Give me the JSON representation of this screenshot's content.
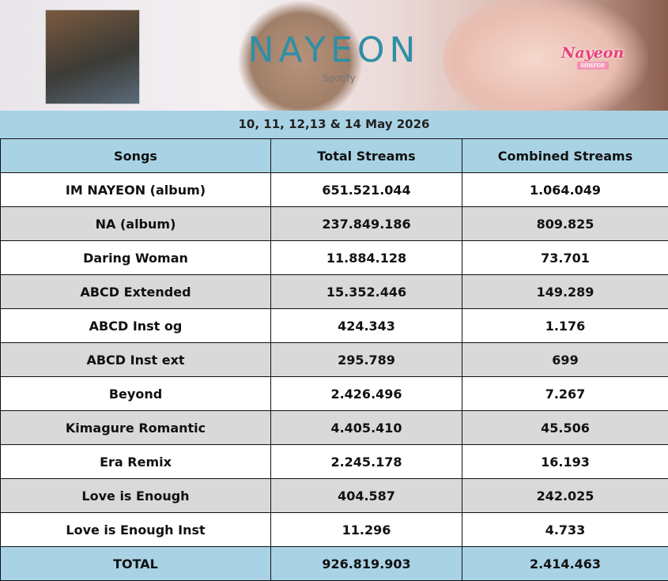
{
  "header": {
    "title": "NAYEON",
    "brand": "Spotify",
    "logo": {
      "name": "Nayeon",
      "tag": "source"
    }
  },
  "date_range": "10, 11, 12,13 & 14 May 2026",
  "table": {
    "columns": [
      "Songs",
      "Total Streams",
      "Combined Streams"
    ],
    "rows": [
      [
        "IM NAYEON (album)",
        "651.521.044",
        "1.064.049"
      ],
      [
        "NA (album)",
        "237.849.186",
        "809.825"
      ],
      [
        "Daring Woman",
        "11.884.128",
        "73.701"
      ],
      [
        "ABCD Extended",
        "15.352.446",
        "149.289"
      ],
      [
        "ABCD Inst og",
        "424.343",
        "1.176"
      ],
      [
        "ABCD Inst ext",
        "295.789",
        "699"
      ],
      [
        "Beyond",
        "2.426.496",
        "7.267"
      ],
      [
        "Kimagure Romantic",
        "4.405.410",
        "45.506"
      ],
      [
        "Era Remix",
        "2.245.178",
        "16.193"
      ],
      [
        "Love is Enough",
        "404.587",
        "242.025"
      ],
      [
        "Love is Enough Inst",
        "11.296",
        "4.733"
      ]
    ],
    "total": [
      "TOTAL",
      "926.819.903",
      "2.414.463"
    ]
  }
}
